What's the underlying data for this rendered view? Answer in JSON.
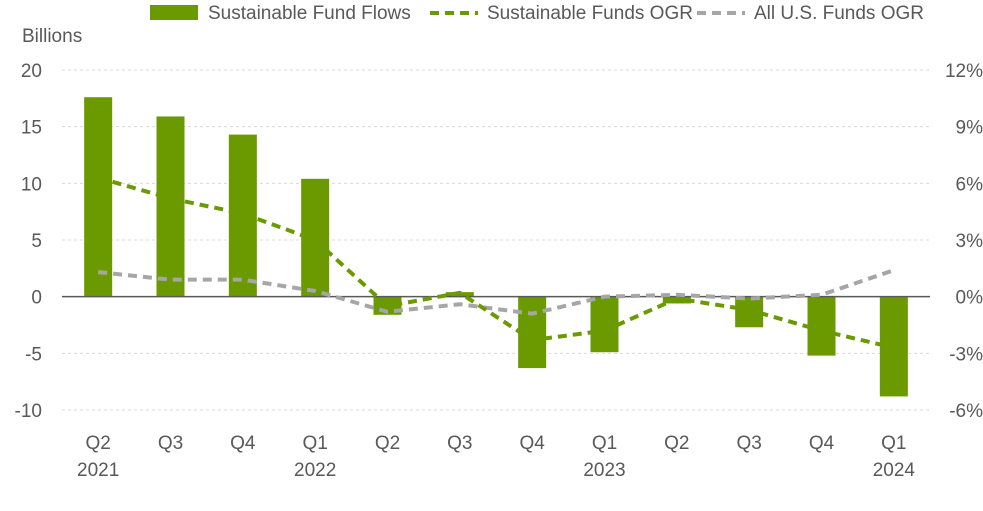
{
  "chart_data": {
    "type": "bar",
    "title": "",
    "ylabel": "Billions",
    "colors": {
      "flows": "#6a9a00",
      "sustainable_ogr": "#6a9a00",
      "all_ogr": "#a6a6a6",
      "grid": "#d9d9d9",
      "text": "#595959"
    },
    "categories": [
      "Q2",
      "Q3",
      "Q4",
      "Q1",
      "Q2",
      "Q3",
      "Q4",
      "Q1",
      "Q2",
      "Q3",
      "Q4",
      "Q1"
    ],
    "years": [
      "2021",
      "",
      "",
      "2022",
      "",
      "",
      "",
      "2023",
      "",
      "",
      "",
      "2024"
    ],
    "y_left": {
      "min": -10,
      "max": 20,
      "ticks": [
        "20",
        "15",
        "10",
        "5",
        "0",
        "-5",
        "-10"
      ]
    },
    "y_right": {
      "min": -6,
      "max": 12,
      "ticks": [
        "12%",
        "9%",
        "6%",
        "3%",
        "0%",
        "-3%",
        "-6%"
      ]
    },
    "legend": {
      "position": "top",
      "items": [
        "Sustainable Fund Flows",
        "Sustainable Funds OGR",
        "All U.S. Funds OGR"
      ]
    },
    "grid": true,
    "series": [
      {
        "name": "Sustainable Fund Flows",
        "type": "bar",
        "axis": "left",
        "values": [
          17.6,
          15.9,
          14.3,
          10.4,
          -1.6,
          0.4,
          -6.3,
          -4.9,
          -0.6,
          -2.7,
          -5.2,
          -8.8
        ]
      },
      {
        "name": "Sustainable Funds OGR",
        "type": "line",
        "style": "dashed",
        "axis": "right",
        "values": [
          6.3,
          5.2,
          4.4,
          3.0,
          -0.5,
          0.2,
          -2.3,
          -1.8,
          -0.1,
          -0.7,
          -1.8,
          -2.7
        ]
      },
      {
        "name": "All U.S. Funds OGR",
        "type": "line",
        "style": "dashed",
        "axis": "right",
        "values": [
          1.3,
          0.9,
          0.9,
          0.3,
          -0.8,
          -0.4,
          -0.9,
          0.0,
          0.1,
          -0.1,
          0.1,
          1.4
        ]
      }
    ]
  }
}
